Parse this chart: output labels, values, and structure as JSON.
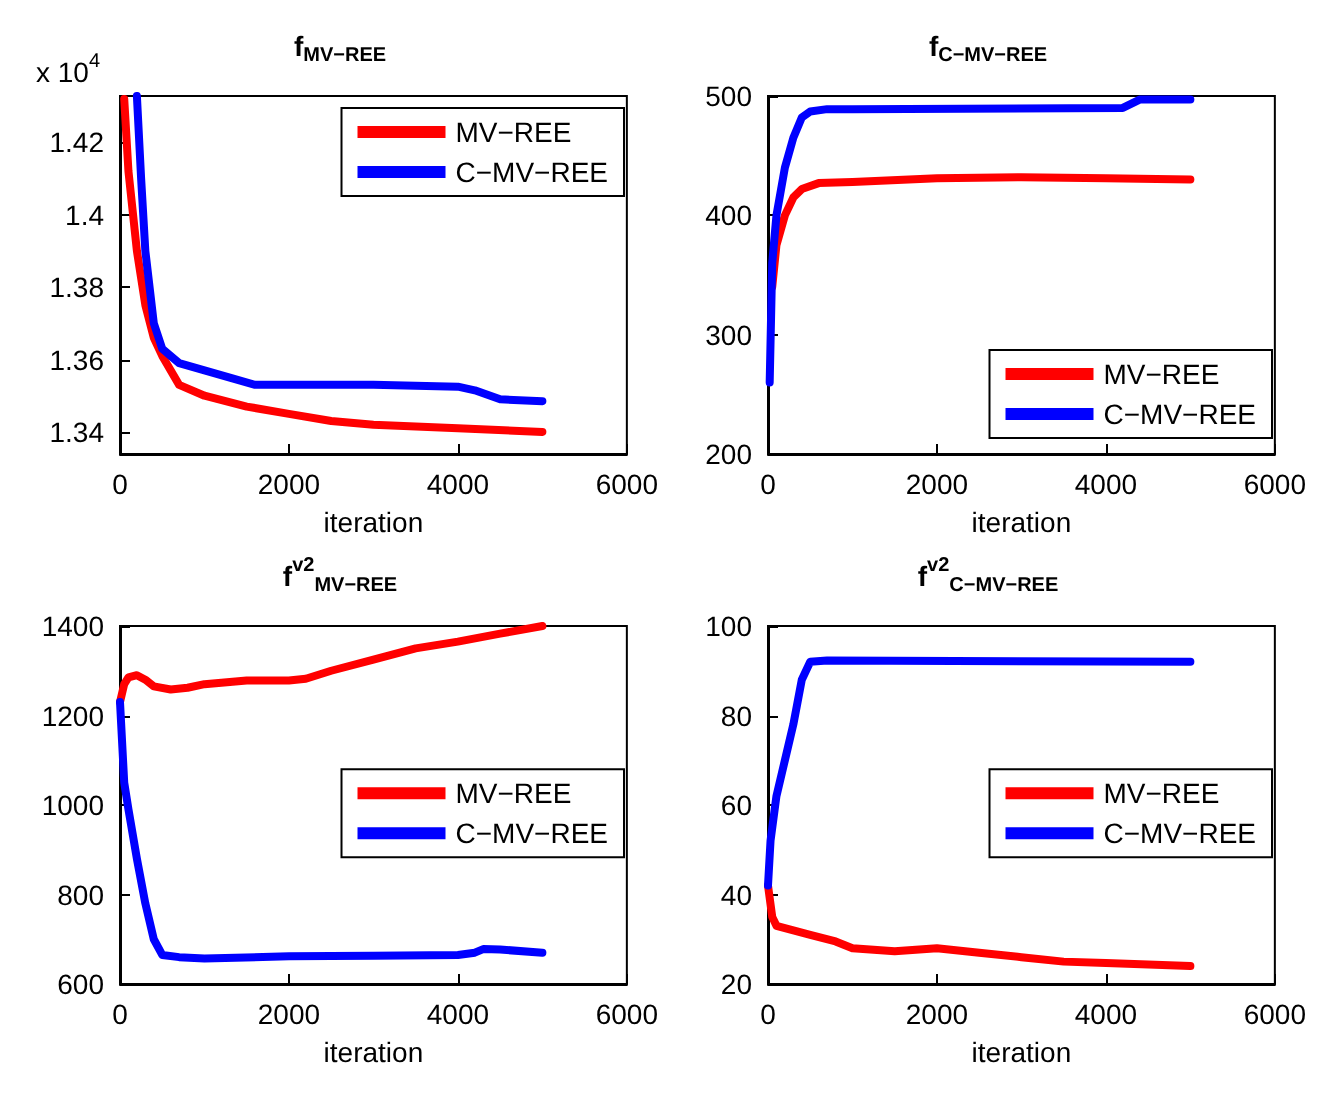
{
  "chart_data": [
    {
      "type": "line",
      "title": "f$_{MV−REE}$",
      "xlabel": "iteration",
      "annotations": [
        "x 10$^{4}$"
      ],
      "xlim": [
        0,
        6000
      ],
      "xticks": [
        0,
        2000,
        4000,
        6000
      ],
      "ylim": [
        1.3339,
        1.4328
      ],
      "yticks": [
        1.34,
        1.36,
        1.38,
        1.4,
        1.42
      ],
      "legend": "top right",
      "series": [
        {
          "name": "MV−REE",
          "color": "#ff0000",
          "x": [
            50,
            100,
            200,
            300,
            400,
            500,
            700,
            1000,
            1500,
            2000,
            2500,
            3000,
            4000,
            5000
          ],
          "values": [
            1.432,
            1.412,
            1.39,
            1.375,
            1.366,
            1.361,
            1.353,
            1.35,
            1.347,
            1.345,
            1.343,
            1.342,
            1.341,
            1.34
          ]
        },
        {
          "name": "C−MV−REE",
          "color": "#0000ff",
          "x": [
            200,
            250,
            300,
            400,
            500,
            700,
            1000,
            1300,
            1600,
            2000,
            3000,
            4000,
            4200,
            4500,
            5000
          ],
          "values": [
            1.4328,
            1.41,
            1.39,
            1.37,
            1.363,
            1.359,
            1.357,
            1.355,
            1.353,
            1.353,
            1.353,
            1.3525,
            1.3515,
            1.349,
            1.3485
          ]
        }
      ]
    },
    {
      "type": "line",
      "title": "f$_{C−MV−REE}$",
      "xlabel": "iteration",
      "xlim": [
        0,
        6000
      ],
      "xticks": [
        0,
        2000,
        4000,
        6000
      ],
      "ylim": [
        200,
        500
      ],
      "yticks": [
        200,
        300,
        400,
        500
      ],
      "legend": "bottom right",
      "series": [
        {
          "name": "MV−REE",
          "color": "#ff0000",
          "x": [
            50,
            100,
            200,
            300,
            400,
            600,
            1000,
            2000,
            3000,
            4000,
            5000
          ],
          "values": [
            340,
            375,
            400,
            415,
            422,
            427,
            428,
            431,
            432,
            431,
            430
          ]
        },
        {
          "name": "C−MV−REE",
          "color": "#0000ff",
          "x": [
            20,
            50,
            100,
            200,
            300,
            400,
            500,
            700,
            1000,
            4200,
            4400,
            5000
          ],
          "values": [
            260,
            360,
            400,
            440,
            465,
            482,
            487,
            489,
            489,
            490,
            497,
            497
          ]
        }
      ]
    },
    {
      "type": "line",
      "title": "f$^{v2}$$_{MV−REE}$",
      "xlabel": "iteration",
      "xlim": [
        0,
        6000
      ],
      "xticks": [
        0,
        2000,
        4000,
        6000
      ],
      "ylim": [
        600,
        1400
      ],
      "yticks": [
        600,
        800,
        1000,
        1200,
        1400
      ],
      "legend": "right",
      "series": [
        {
          "name": "MV−REE",
          "color": "#ff0000",
          "x": [
            0,
            50,
            100,
            200,
            300,
            400,
            600,
            800,
            1000,
            1500,
            2000,
            2200,
            2500,
            3000,
            3500,
            4000,
            4500,
            5000
          ],
          "values": [
            1230,
            1270,
            1285,
            1290,
            1280,
            1265,
            1258,
            1262,
            1270,
            1278,
            1278,
            1282,
            1300,
            1325,
            1350,
            1365,
            1383,
            1400
          ]
        },
        {
          "name": "C−MV−REE",
          "color": "#0000ff",
          "x": [
            0,
            50,
            100,
            200,
            300,
            400,
            500,
            700,
            1000,
            2000,
            3000,
            4000,
            4200,
            4300,
            4500,
            5000
          ],
          "values": [
            1230,
            1050,
            990,
            880,
            780,
            700,
            665,
            660,
            657,
            662,
            663,
            665,
            670,
            678,
            677,
            670
          ]
        }
      ]
    },
    {
      "type": "line",
      "title": "f$^{v2}$$_{C−MV−REE}$",
      "xlabel": "iteration",
      "xlim": [
        0,
        6000
      ],
      "xticks": [
        0,
        2000,
        4000,
        6000
      ],
      "ylim": [
        20,
        100
      ],
      "yticks": [
        20,
        40,
        60,
        80,
        100
      ],
      "legend": "right",
      "series": [
        {
          "name": "MV−REE",
          "color": "#ff0000",
          "x": [
            0,
            50,
            100,
            300,
            500,
            800,
            1000,
            1500,
            2000,
            2500,
            3000,
            3500,
            4000,
            5000
          ],
          "values": [
            42,
            35,
            33,
            32,
            31,
            29.5,
            28,
            27.3,
            28,
            27,
            26,
            25,
            24.7,
            24
          ]
        },
        {
          "name": "C−MV−REE",
          "color": "#0000ff",
          "x": [
            0,
            30,
            100,
            200,
            300,
            400,
            500,
            700,
            5000
          ],
          "values": [
            42,
            52,
            62,
            70,
            78,
            88,
            92,
            92.3,
            92
          ]
        }
      ]
    }
  ]
}
